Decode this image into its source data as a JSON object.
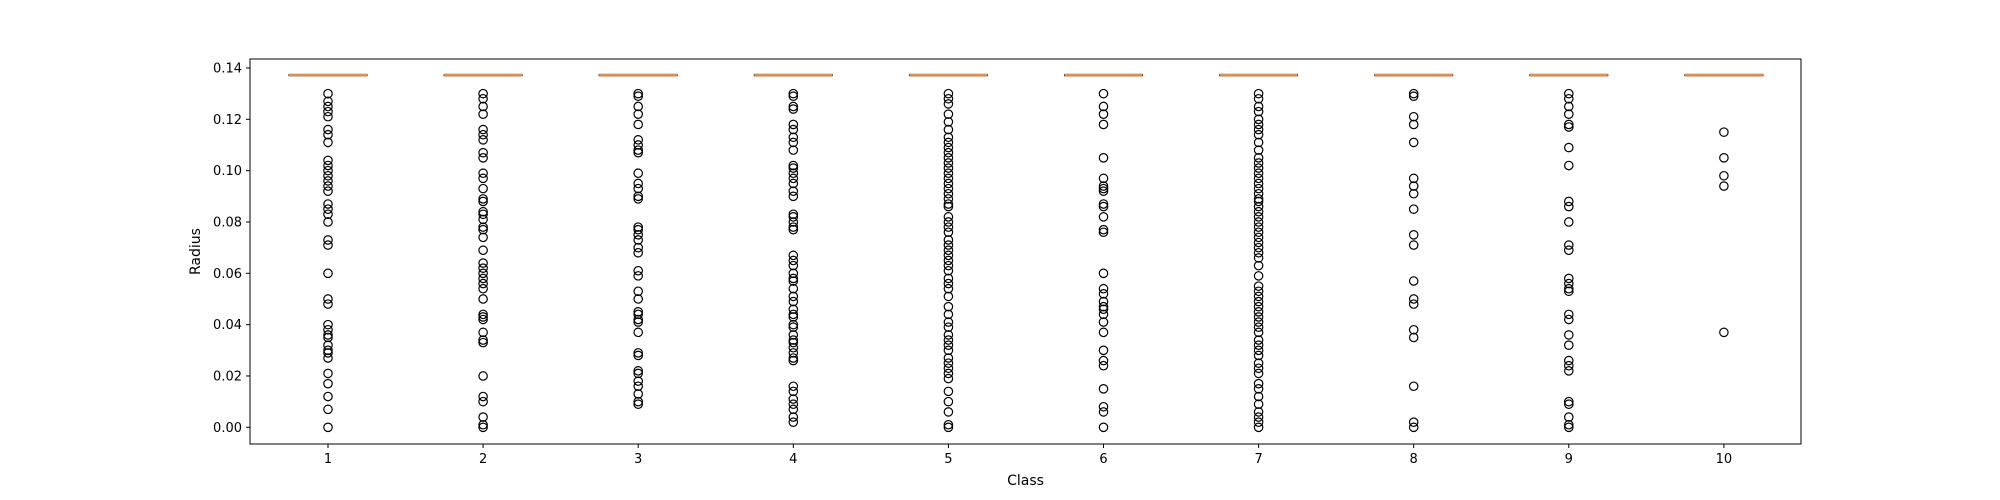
{
  "chart_data": {
    "type": "boxplot",
    "title": "",
    "xlabel": "Class",
    "ylabel": "Radius",
    "ylim": [
      -0.0065,
      0.1435
    ],
    "yticks": [
      0.0,
      0.02,
      0.04,
      0.06,
      0.08,
      0.1,
      0.12,
      0.14
    ],
    "ytick_labels": [
      "0.00",
      "0.02",
      "0.04",
      "0.06",
      "0.08",
      "0.10",
      "0.12",
      "0.14"
    ],
    "grid": false,
    "colors": {
      "median": "#d4915c",
      "box": "#000000",
      "flier": "#000000"
    },
    "categories": [
      "1",
      "2",
      "3",
      "4",
      "5",
      "6",
      "7",
      "8",
      "9",
      "10"
    ],
    "boxes": [
      {
        "class": "1",
        "q1": 0.1372,
        "median": 0.1372,
        "q3": 0.1372,
        "whisker_low": 0.1372,
        "whisker_high": 0.1372,
        "fliers": [
          0.13,
          0.127,
          0.125,
          0.123,
          0.121,
          0.116,
          0.114,
          0.111,
          0.104,
          0.102,
          0.1,
          0.098,
          0.096,
          0.094,
          0.092,
          0.087,
          0.085,
          0.083,
          0.08,
          0.073,
          0.071,
          0.06,
          0.05,
          0.048,
          0.04,
          0.038,
          0.036,
          0.035,
          0.032,
          0.03,
          0.029,
          0.027,
          0.021,
          0.017,
          0.012,
          0.007,
          0.0
        ]
      },
      {
        "class": "2",
        "q1": 0.1372,
        "median": 0.1372,
        "q3": 0.1372,
        "whisker_low": 0.1372,
        "whisker_high": 0.1372,
        "fliers": [
          0.13,
          0.128,
          0.125,
          0.122,
          0.116,
          0.114,
          0.112,
          0.107,
          0.105,
          0.099,
          0.097,
          0.093,
          0.089,
          0.088,
          0.084,
          0.083,
          0.081,
          0.078,
          0.077,
          0.074,
          0.069,
          0.064,
          0.062,
          0.06,
          0.058,
          0.056,
          0.054,
          0.05,
          0.044,
          0.043,
          0.042,
          0.037,
          0.034,
          0.033,
          0.02,
          0.012,
          0.01,
          0.004,
          0.001,
          0.0
        ]
      },
      {
        "class": "3",
        "q1": 0.1372,
        "median": 0.1372,
        "q3": 0.1372,
        "whisker_low": 0.1372,
        "whisker_high": 0.1372,
        "fliers": [
          0.13,
          0.129,
          0.125,
          0.122,
          0.118,
          0.112,
          0.11,
          0.108,
          0.107,
          0.099,
          0.095,
          0.093,
          0.09,
          0.089,
          0.078,
          0.077,
          0.075,
          0.073,
          0.07,
          0.068,
          0.061,
          0.059,
          0.053,
          0.05,
          0.045,
          0.044,
          0.042,
          0.041,
          0.037,
          0.029,
          0.028,
          0.022,
          0.021,
          0.018,
          0.016,
          0.013,
          0.01,
          0.009
        ]
      },
      {
        "class": "4",
        "q1": 0.1372,
        "median": 0.1372,
        "q3": 0.1372,
        "whisker_low": 0.1372,
        "whisker_high": 0.1372,
        "fliers": [
          0.13,
          0.129,
          0.125,
          0.124,
          0.118,
          0.116,
          0.113,
          0.111,
          0.108,
          0.102,
          0.101,
          0.099,
          0.097,
          0.095,
          0.092,
          0.09,
          0.083,
          0.082,
          0.08,
          0.078,
          0.077,
          0.067,
          0.065,
          0.063,
          0.06,
          0.058,
          0.057,
          0.054,
          0.051,
          0.049,
          0.046,
          0.044,
          0.043,
          0.04,
          0.039,
          0.036,
          0.034,
          0.033,
          0.031,
          0.029,
          0.027,
          0.026,
          0.016,
          0.014,
          0.011,
          0.009,
          0.007,
          0.004,
          0.002
        ]
      },
      {
        "class": "5",
        "q1": 0.1372,
        "median": 0.1372,
        "q3": 0.1372,
        "whisker_low": 0.1372,
        "whisker_high": 0.1372,
        "fliers": [
          0.13,
          0.128,
          0.126,
          0.122,
          0.119,
          0.116,
          0.113,
          0.111,
          0.109,
          0.107,
          0.105,
          0.103,
          0.101,
          0.099,
          0.097,
          0.095,
          0.093,
          0.091,
          0.089,
          0.087,
          0.086,
          0.082,
          0.08,
          0.078,
          0.076,
          0.073,
          0.071,
          0.069,
          0.067,
          0.065,
          0.063,
          0.061,
          0.058,
          0.056,
          0.054,
          0.051,
          0.047,
          0.044,
          0.041,
          0.039,
          0.036,
          0.034,
          0.032,
          0.03,
          0.027,
          0.025,
          0.023,
          0.021,
          0.019,
          0.014,
          0.01,
          0.006,
          0.001,
          0.0
        ]
      },
      {
        "class": "6",
        "q1": 0.1372,
        "median": 0.1372,
        "q3": 0.1372,
        "whisker_low": 0.1372,
        "whisker_high": 0.1372,
        "fliers": [
          0.13,
          0.125,
          0.122,
          0.118,
          0.105,
          0.097,
          0.094,
          0.093,
          0.092,
          0.087,
          0.086,
          0.082,
          0.077,
          0.076,
          0.06,
          0.054,
          0.052,
          0.049,
          0.047,
          0.046,
          0.044,
          0.041,
          0.037,
          0.03,
          0.026,
          0.024,
          0.015,
          0.008,
          0.006,
          0.0
        ]
      },
      {
        "class": "7",
        "q1": 0.1372,
        "median": 0.1372,
        "q3": 0.1372,
        "whisker_low": 0.1372,
        "whisker_high": 0.1372,
        "fliers": [
          0.13,
          0.128,
          0.125,
          0.123,
          0.12,
          0.118,
          0.116,
          0.114,
          0.111,
          0.108,
          0.105,
          0.103,
          0.101,
          0.099,
          0.097,
          0.095,
          0.093,
          0.091,
          0.089,
          0.088,
          0.086,
          0.084,
          0.082,
          0.08,
          0.078,
          0.076,
          0.074,
          0.072,
          0.07,
          0.068,
          0.066,
          0.063,
          0.059,
          0.055,
          0.053,
          0.051,
          0.049,
          0.047,
          0.045,
          0.043,
          0.041,
          0.039,
          0.037,
          0.034,
          0.032,
          0.03,
          0.028,
          0.025,
          0.023,
          0.021,
          0.017,
          0.015,
          0.012,
          0.009,
          0.006,
          0.004,
          0.002,
          0.0
        ]
      },
      {
        "class": "8",
        "q1": 0.1372,
        "median": 0.1372,
        "q3": 0.1372,
        "whisker_low": 0.1372,
        "whisker_high": 0.1372,
        "fliers": [
          0.13,
          0.129,
          0.121,
          0.118,
          0.111,
          0.097,
          0.094,
          0.091,
          0.085,
          0.075,
          0.071,
          0.057,
          0.05,
          0.048,
          0.038,
          0.035,
          0.016,
          0.002,
          0.0
        ]
      },
      {
        "class": "9",
        "q1": 0.1372,
        "median": 0.1372,
        "q3": 0.1372,
        "whisker_low": 0.1372,
        "whisker_high": 0.1372,
        "fliers": [
          0.13,
          0.128,
          0.125,
          0.122,
          0.118,
          0.117,
          0.109,
          0.102,
          0.088,
          0.086,
          0.08,
          0.071,
          0.069,
          0.058,
          0.056,
          0.054,
          0.053,
          0.044,
          0.042,
          0.036,
          0.032,
          0.026,
          0.024,
          0.022,
          0.01,
          0.009,
          0.004,
          0.001,
          0.0
        ]
      },
      {
        "class": "10",
        "q1": 0.1372,
        "median": 0.1372,
        "q3": 0.1372,
        "whisker_low": 0.1372,
        "whisker_high": 0.1372,
        "fliers": [
          0.115,
          0.105,
          0.098,
          0.094,
          0.037
        ]
      }
    ]
  }
}
